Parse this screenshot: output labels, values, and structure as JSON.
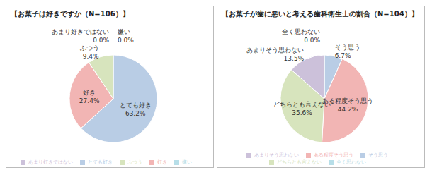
{
  "chart_data": [
    {
      "type": "pie",
      "title": "【お菓子は好きですか（N=106）】",
      "categories": [
        "とても好き",
        "好き",
        "ふつう",
        "あまり好きではない",
        "嫌い"
      ],
      "values": [
        63.2,
        27.4,
        9.4,
        0.0,
        0.0
      ],
      "value_labels": [
        "63.2%",
        "27.4%",
        "9.4%",
        "0.0%",
        "0.0%"
      ],
      "colors": [
        "#b9cde5",
        "#f2b5b4",
        "#d7e4bd",
        "#ccc1da",
        "#b7dee8"
      ],
      "data_labels": true,
      "legend": "bottom"
    },
    {
      "type": "pie",
      "title": "【お菓子が歯に悪いと考える歯科衛生士の割合（N=104）】",
      "categories": [
        "そう思う",
        "ある程度そう思う",
        "どちらとも言えない",
        "あまりそう思わない",
        "全く思わない"
      ],
      "values": [
        6.7,
        44.2,
        35.6,
        13.5,
        0.0
      ],
      "value_labels": [
        "6.7%",
        "44.2%",
        "35.6%",
        "13.5%",
        "0.0%"
      ],
      "colors": [
        "#b9cde5",
        "#f2b5b4",
        "#d7e4bd",
        "#ccc1da",
        "#b7dee8"
      ],
      "data_labels": true,
      "legend": "bottom"
    }
  ]
}
